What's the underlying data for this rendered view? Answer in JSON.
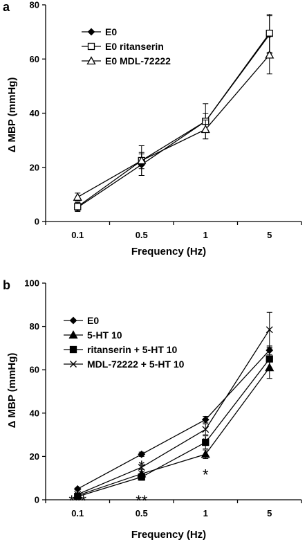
{
  "chart_data": [
    {
      "panel": "a",
      "type": "line",
      "ylabel": "Δ MBP (mmHg)",
      "xlabel": "Frequency (Hz)",
      "categories": [
        "0.1",
        "0.5",
        "1",
        "5"
      ],
      "ylim": [
        0,
        80
      ],
      "yticks": [
        "0",
        "20",
        "40",
        "60",
        "80"
      ],
      "grid": false,
      "legend_position": "top-left",
      "series": [
        {
          "name": "E0",
          "marker": "filled-diamond",
          "values": [
            5.2,
            21,
            37,
            69
          ],
          "errors": [
            1.5,
            4,
            3,
            7
          ]
        },
        {
          "name": "E0 ritanserin",
          "marker": "open-square",
          "values": [
            5.5,
            22.5,
            37,
            69.5
          ],
          "errors": [
            1.5,
            5.5,
            6.5,
            7
          ]
        },
        {
          "name": "E0 MDL-72222",
          "marker": "open-triangle",
          "values": [
            9,
            22.5,
            34,
            61.5
          ],
          "errors": [
            1.5,
            3,
            3.5,
            7
          ]
        }
      ],
      "annotations": []
    },
    {
      "panel": "b",
      "type": "line",
      "ylabel": "Δ MBP (mmHg)",
      "xlabel": "Frequency (Hz)",
      "categories": [
        "0.1",
        "0.5",
        "1",
        "5"
      ],
      "ylim": [
        0,
        100
      ],
      "yticks": [
        "0",
        "20",
        "40",
        "60",
        "80",
        "100"
      ],
      "grid": false,
      "legend_position": "top-left",
      "series": [
        {
          "name": "E0",
          "marker": "filled-diamond",
          "values": [
            5,
            21,
            37,
            69
          ],
          "errors": [
            0.5,
            1,
            1.5,
            2
          ]
        },
        {
          "name": "5-HT 10",
          "marker": "filled-triangle",
          "values": [
            2,
            12,
            21,
            61
          ],
          "errors": [
            0.5,
            1,
            2,
            5
          ]
        },
        {
          "name": "ritanserin + 5-HT 10",
          "marker": "filled-square",
          "values": [
            1.5,
            10.5,
            26.5,
            65
          ],
          "errors": [
            0.5,
            1.5,
            3,
            5
          ]
        },
        {
          "name": "MDL-72222 + 5-HT 10",
          "marker": "cross",
          "values": [
            2.5,
            15,
            32.5,
            78.5
          ],
          "errors": [
            0.5,
            1,
            2.5,
            8
          ]
        }
      ],
      "annotations": [
        {
          "text": "***",
          "category": "0.1",
          "value": 1
        },
        {
          "text": "*",
          "category": "0.5",
          "value": 17
        },
        {
          "text": "**",
          "category": "0.5",
          "value": 1
        },
        {
          "text": "*",
          "category": "1",
          "value": 28
        },
        {
          "text": "*",
          "category": "1",
          "value": 13
        }
      ]
    }
  ]
}
